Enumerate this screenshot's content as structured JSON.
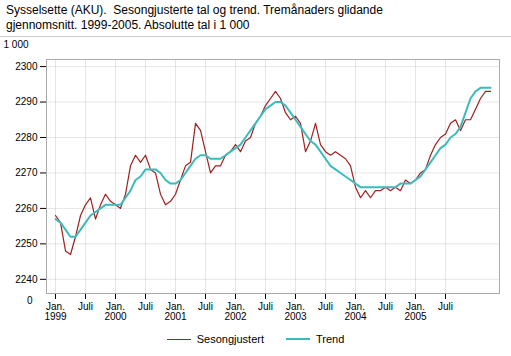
{
  "chart_data": {
    "type": "line",
    "title": "Sysselsette (AKU).  Sesongjusterte tal og trend. Tremånaders glidande",
    "subtitle": "gjennomsnitt. 1999-2005. Absolutte tal i 1 000",
    "ylabel": "1 000",
    "annotations": [
      "0"
    ],
    "categories": [
      "Jan.\n1999",
      null,
      null,
      null,
      null,
      null,
      "Juli",
      null,
      null,
      null,
      null,
      null,
      "Jan.\n2000",
      null,
      null,
      null,
      null,
      null,
      "Juli",
      null,
      null,
      null,
      null,
      null,
      "Jan.\n2001",
      null,
      null,
      null,
      null,
      null,
      "Juli",
      null,
      null,
      null,
      null,
      null,
      "Jan.\n2002",
      null,
      null,
      null,
      null,
      null,
      "Juli",
      null,
      null,
      null,
      null,
      null,
      "Jan.\n2003",
      null,
      null,
      null,
      null,
      null,
      "Juli",
      null,
      null,
      null,
      null,
      null,
      "Jan.\n2004",
      null,
      null,
      null,
      null,
      null,
      "Juli",
      null,
      null,
      null,
      null,
      null,
      "Jan.\n2005",
      null,
      null,
      null,
      null,
      null,
      "Juli",
      null,
      null,
      null,
      null,
      null,
      null,
      null,
      null,
      null
    ],
    "series": [
      {
        "name": "Sesongjustert",
        "color": "#a02020",
        "values": [
          2258,
          2256,
          2248,
          2247,
          2252,
          2258,
          2261,
          2263,
          2257,
          2261,
          2264,
          2262,
          2261,
          2260,
          2264,
          2272,
          2275,
          2273,
          2275,
          2271,
          2270,
          2264,
          2261,
          2262,
          2264,
          2268,
          2272,
          2273,
          2284,
          2282,
          2276,
          2270,
          2272,
          2272,
          2275,
          2276,
          2278,
          2276,
          2279,
          2280,
          2284,
          2286,
          2289,
          2291,
          2293,
          2291,
          2287,
          2285,
          2286,
          2284,
          2276,
          2279,
          2284,
          2278,
          2276,
          2275,
          2276,
          2275,
          2274,
          2272,
          2266,
          2263,
          2265,
          2263,
          2265,
          2265,
          2266,
          2265,
          2266,
          2265,
          2268,
          2267,
          2268,
          2270,
          2271,
          2275,
          2278,
          2280,
          2281,
          2284,
          2285,
          2282,
          2285,
          2285,
          2288,
          2291,
          2293,
          2293
        ]
      },
      {
        "name": "Trend",
        "color": "#3bbcbc",
        "values": [
          2257,
          2256,
          2254,
          2252,
          2252,
          2254,
          2256,
          2258,
          2259,
          2260,
          2261,
          2261,
          2261,
          2261,
          2263,
          2265,
          2268,
          2269,
          2271,
          2271,
          2271,
          2270,
          2268,
          2267,
          2267,
          2268,
          2270,
          2272,
          2274,
          2275,
          2275,
          2274,
          2274,
          2274,
          2275,
          2276,
          2277,
          2278,
          2280,
          2282,
          2284,
          2286,
          2288,
          2289,
          2290,
          2290,
          2289,
          2287,
          2285,
          2283,
          2281,
          2279,
          2278,
          2276,
          2274,
          2272,
          2271,
          2270,
          2269,
          2268,
          2267,
          2266,
          2266,
          2266,
          2266,
          2266,
          2266,
          2266,
          2266,
          2267,
          2267,
          2267,
          2268,
          2269,
          2271,
          2273,
          2275,
          2277,
          2278,
          2280,
          2281,
          2283,
          2287,
          2291,
          2293,
          2294,
          2294,
          2294
        ]
      }
    ],
    "ylim": [
      2236,
      2302
    ],
    "yticks": [
      2240,
      2250,
      2260,
      2270,
      2280,
      2290,
      2300
    ],
    "grid": true,
    "legend": "bottom"
  }
}
